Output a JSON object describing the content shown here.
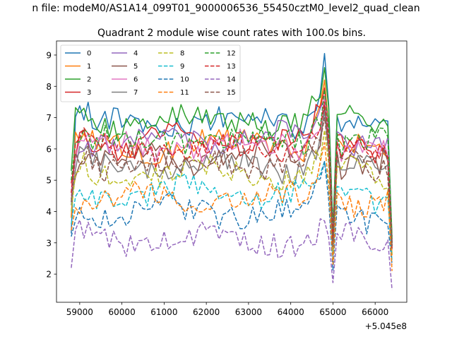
{
  "chart_data": {
    "type": "line",
    "suptitle": "n file: modeM0/AS1A14_099T01_9000006536_55450cztM0_level2_quad_clean",
    "title": "Quadrant 2 module wise count rates with 100.0s bins.",
    "xlabel": "",
    "ylabel": "",
    "x_offset_label": "+5.045e8",
    "xlim": [
      58450,
      66750
    ],
    "ylim": [
      1.1,
      9.45
    ],
    "x_start": 58800,
    "x_end": 66400,
    "x_step": 100,
    "x_ticks": [
      59000,
      60000,
      61000,
      62000,
      63000,
      64000,
      65000,
      66000
    ],
    "x_tick_labels": [
      "59000",
      "60000",
      "61000",
      "62000",
      "63000",
      "64000",
      "65000",
      "66000"
    ],
    "y_ticks": [
      2,
      3,
      4,
      5,
      6,
      7,
      8,
      9
    ],
    "y_tick_labels": [
      "2",
      "3",
      "4",
      "5",
      "6",
      "7",
      "8",
      "9"
    ],
    "legend_position": "upper-left",
    "legend_columns": 4,
    "series": [
      {
        "name": "0",
        "color": "#1f77b4",
        "dash": false,
        "base": 6.7,
        "peak": 9.05,
        "end": 3.0,
        "start": 3.3
      },
      {
        "name": "1",
        "color": "#ff7f0e",
        "dash": false,
        "base": 6.0,
        "peak": 8.2,
        "end": 2.6,
        "start": 3.8
      },
      {
        "name": "2",
        "color": "#2ca02c",
        "dash": false,
        "base": 6.75,
        "peak": 8.6,
        "end": 3.2,
        "start": 5.3
      },
      {
        "name": "3",
        "color": "#d62728",
        "dash": false,
        "base": 6.1,
        "peak": 7.95,
        "end": 3.1,
        "start": 4.9
      },
      {
        "name": "4",
        "color": "#9467bd",
        "dash": false,
        "base": 6.2,
        "peak": 7.6,
        "end": 3.0,
        "start": 4.6
      },
      {
        "name": "5",
        "color": "#8c564b",
        "dash": false,
        "base": 5.55,
        "peak": 7.4,
        "end": 2.9,
        "start": 4.4
      },
      {
        "name": "6",
        "color": "#e377c2",
        "dash": false,
        "base": 5.9,
        "peak": 7.7,
        "end": 3.0,
        "start": 4.5
      },
      {
        "name": "7",
        "color": "#7f7f7f",
        "dash": false,
        "base": 5.3,
        "peak": 7.2,
        "end": 2.8,
        "start": 4.2
      },
      {
        "name": "8",
        "color": "#bcbd22",
        "dash": true,
        "base": 5.1,
        "peak": 6.6,
        "end": 2.6,
        "start": 4.0
      },
      {
        "name": "9",
        "color": "#17becf",
        "dash": true,
        "base": 4.45,
        "peak": 5.6,
        "end": 2.4,
        "start": 3.6
      },
      {
        "name": "10",
        "color": "#1f77b4",
        "dash": true,
        "base": 3.85,
        "peak": 5.6,
        "end": 2.3,
        "start": 3.2
      },
      {
        "name": "11",
        "color": "#ff7f0e",
        "dash": true,
        "base": 4.25,
        "peak": 6.2,
        "end": 2.1,
        "start": 3.4
      },
      {
        "name": "12",
        "color": "#2ca02c",
        "dash": true,
        "base": 6.15,
        "peak": 7.9,
        "end": 3.0,
        "start": 5.0
      },
      {
        "name": "13",
        "color": "#d62728",
        "dash": true,
        "base": 5.85,
        "peak": 7.5,
        "end": 2.8,
        "start": 4.6
      },
      {
        "name": "14",
        "color": "#9467bd",
        "dash": true,
        "base": 2.95,
        "peak": 3.7,
        "end": 1.5,
        "start": 2.2
      },
      {
        "name": "15",
        "color": "#8c564b",
        "dash": true,
        "base": 5.45,
        "peak": 7.0,
        "end": 2.9,
        "start": 4.3
      }
    ]
  }
}
